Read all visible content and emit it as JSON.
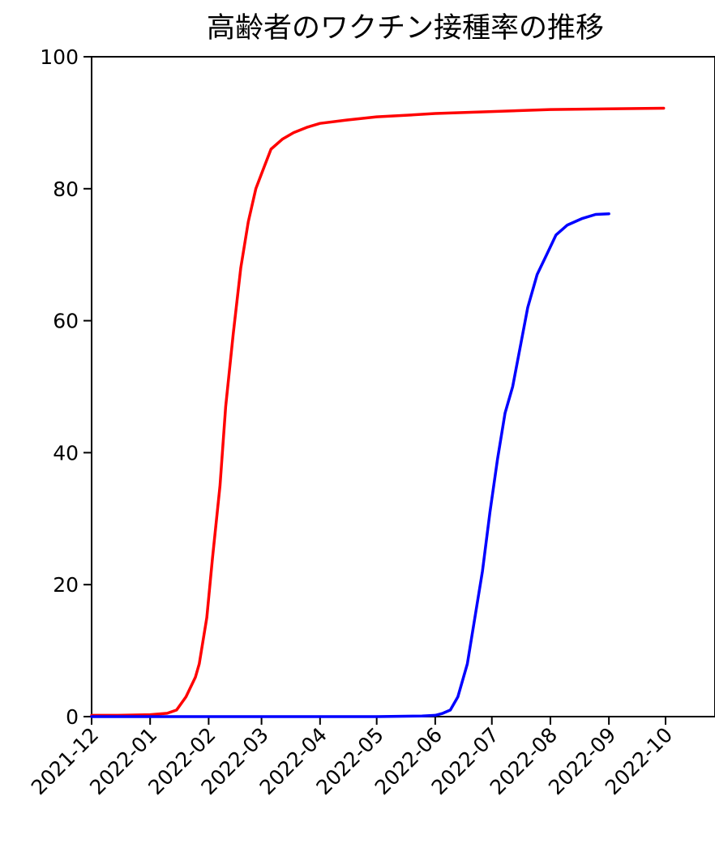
{
  "chart_data": {
    "type": "line",
    "title": "高齢者のワクチン接種率の推移",
    "xlabel": "",
    "ylabel": "",
    "ylim": [
      0,
      100
    ],
    "yticks": [
      "0",
      "20",
      "40",
      "60",
      "80",
      "100"
    ],
    "xlim": [
      "2021-12-01",
      "2022-10-01"
    ],
    "xticks": [
      "2021-12",
      "2022-01",
      "2022-02",
      "2022-03",
      "2022-04",
      "2022-05",
      "2022-06",
      "2022-07",
      "2022-08",
      "2022-09",
      "2022-10"
    ],
    "grid": false,
    "legend": "none",
    "series": [
      {
        "color": "#ff0000",
        "points": [
          [
            "2021-12-01",
            0.2
          ],
          [
            "2021-12-15",
            0.2
          ],
          [
            "2022-01-01",
            0.3
          ],
          [
            "2022-01-10",
            0.5
          ],
          [
            "2022-01-15",
            1
          ],
          [
            "2022-01-20",
            3
          ],
          [
            "2022-01-25",
            6
          ],
          [
            "2022-01-27",
            8
          ],
          [
            "2022-01-31",
            15
          ],
          [
            "2022-02-03",
            24
          ],
          [
            "2022-02-07",
            35
          ],
          [
            "2022-02-10",
            47
          ],
          [
            "2022-02-14",
            58
          ],
          [
            "2022-02-18",
            68
          ],
          [
            "2022-02-22",
            75
          ],
          [
            "2022-02-26",
            80
          ],
          [
            "2022-03-02",
            83
          ],
          [
            "2022-03-06",
            86
          ],
          [
            "2022-03-12",
            87.5
          ],
          [
            "2022-03-18",
            88.5
          ],
          [
            "2022-03-25",
            89.3
          ],
          [
            "2022-04-01",
            89.9
          ],
          [
            "2022-04-15",
            90.4
          ],
          [
            "2022-05-01",
            90.9
          ],
          [
            "2022-05-15",
            91.1
          ],
          [
            "2022-06-01",
            91.4
          ],
          [
            "2022-07-01",
            91.7
          ],
          [
            "2022-08-01",
            92.0
          ],
          [
            "2022-09-01",
            92.1
          ],
          [
            "2022-09-30",
            92.2
          ]
        ]
      },
      {
        "color": "#0000ff",
        "points": [
          [
            "2021-12-01",
            0
          ],
          [
            "2022-05-01",
            0
          ],
          [
            "2022-05-25",
            0.1
          ],
          [
            "2022-06-01",
            0.2
          ],
          [
            "2022-06-05",
            0.5
          ],
          [
            "2022-06-09",
            1
          ],
          [
            "2022-06-13",
            3
          ],
          [
            "2022-06-18",
            8
          ],
          [
            "2022-06-22",
            15
          ],
          [
            "2022-06-26",
            22
          ],
          [
            "2022-06-30",
            31
          ],
          [
            "2022-07-04",
            39
          ],
          [
            "2022-07-08",
            46
          ],
          [
            "2022-07-12",
            50
          ],
          [
            "2022-07-16",
            56
          ],
          [
            "2022-07-20",
            62
          ],
          [
            "2022-07-25",
            67
          ],
          [
            "2022-07-30",
            70
          ],
          [
            "2022-08-04",
            73
          ],
          [
            "2022-08-10",
            74.5
          ],
          [
            "2022-08-18",
            75.5
          ],
          [
            "2022-08-25",
            76.1
          ],
          [
            "2022-09-01",
            76.2
          ]
        ]
      }
    ]
  }
}
